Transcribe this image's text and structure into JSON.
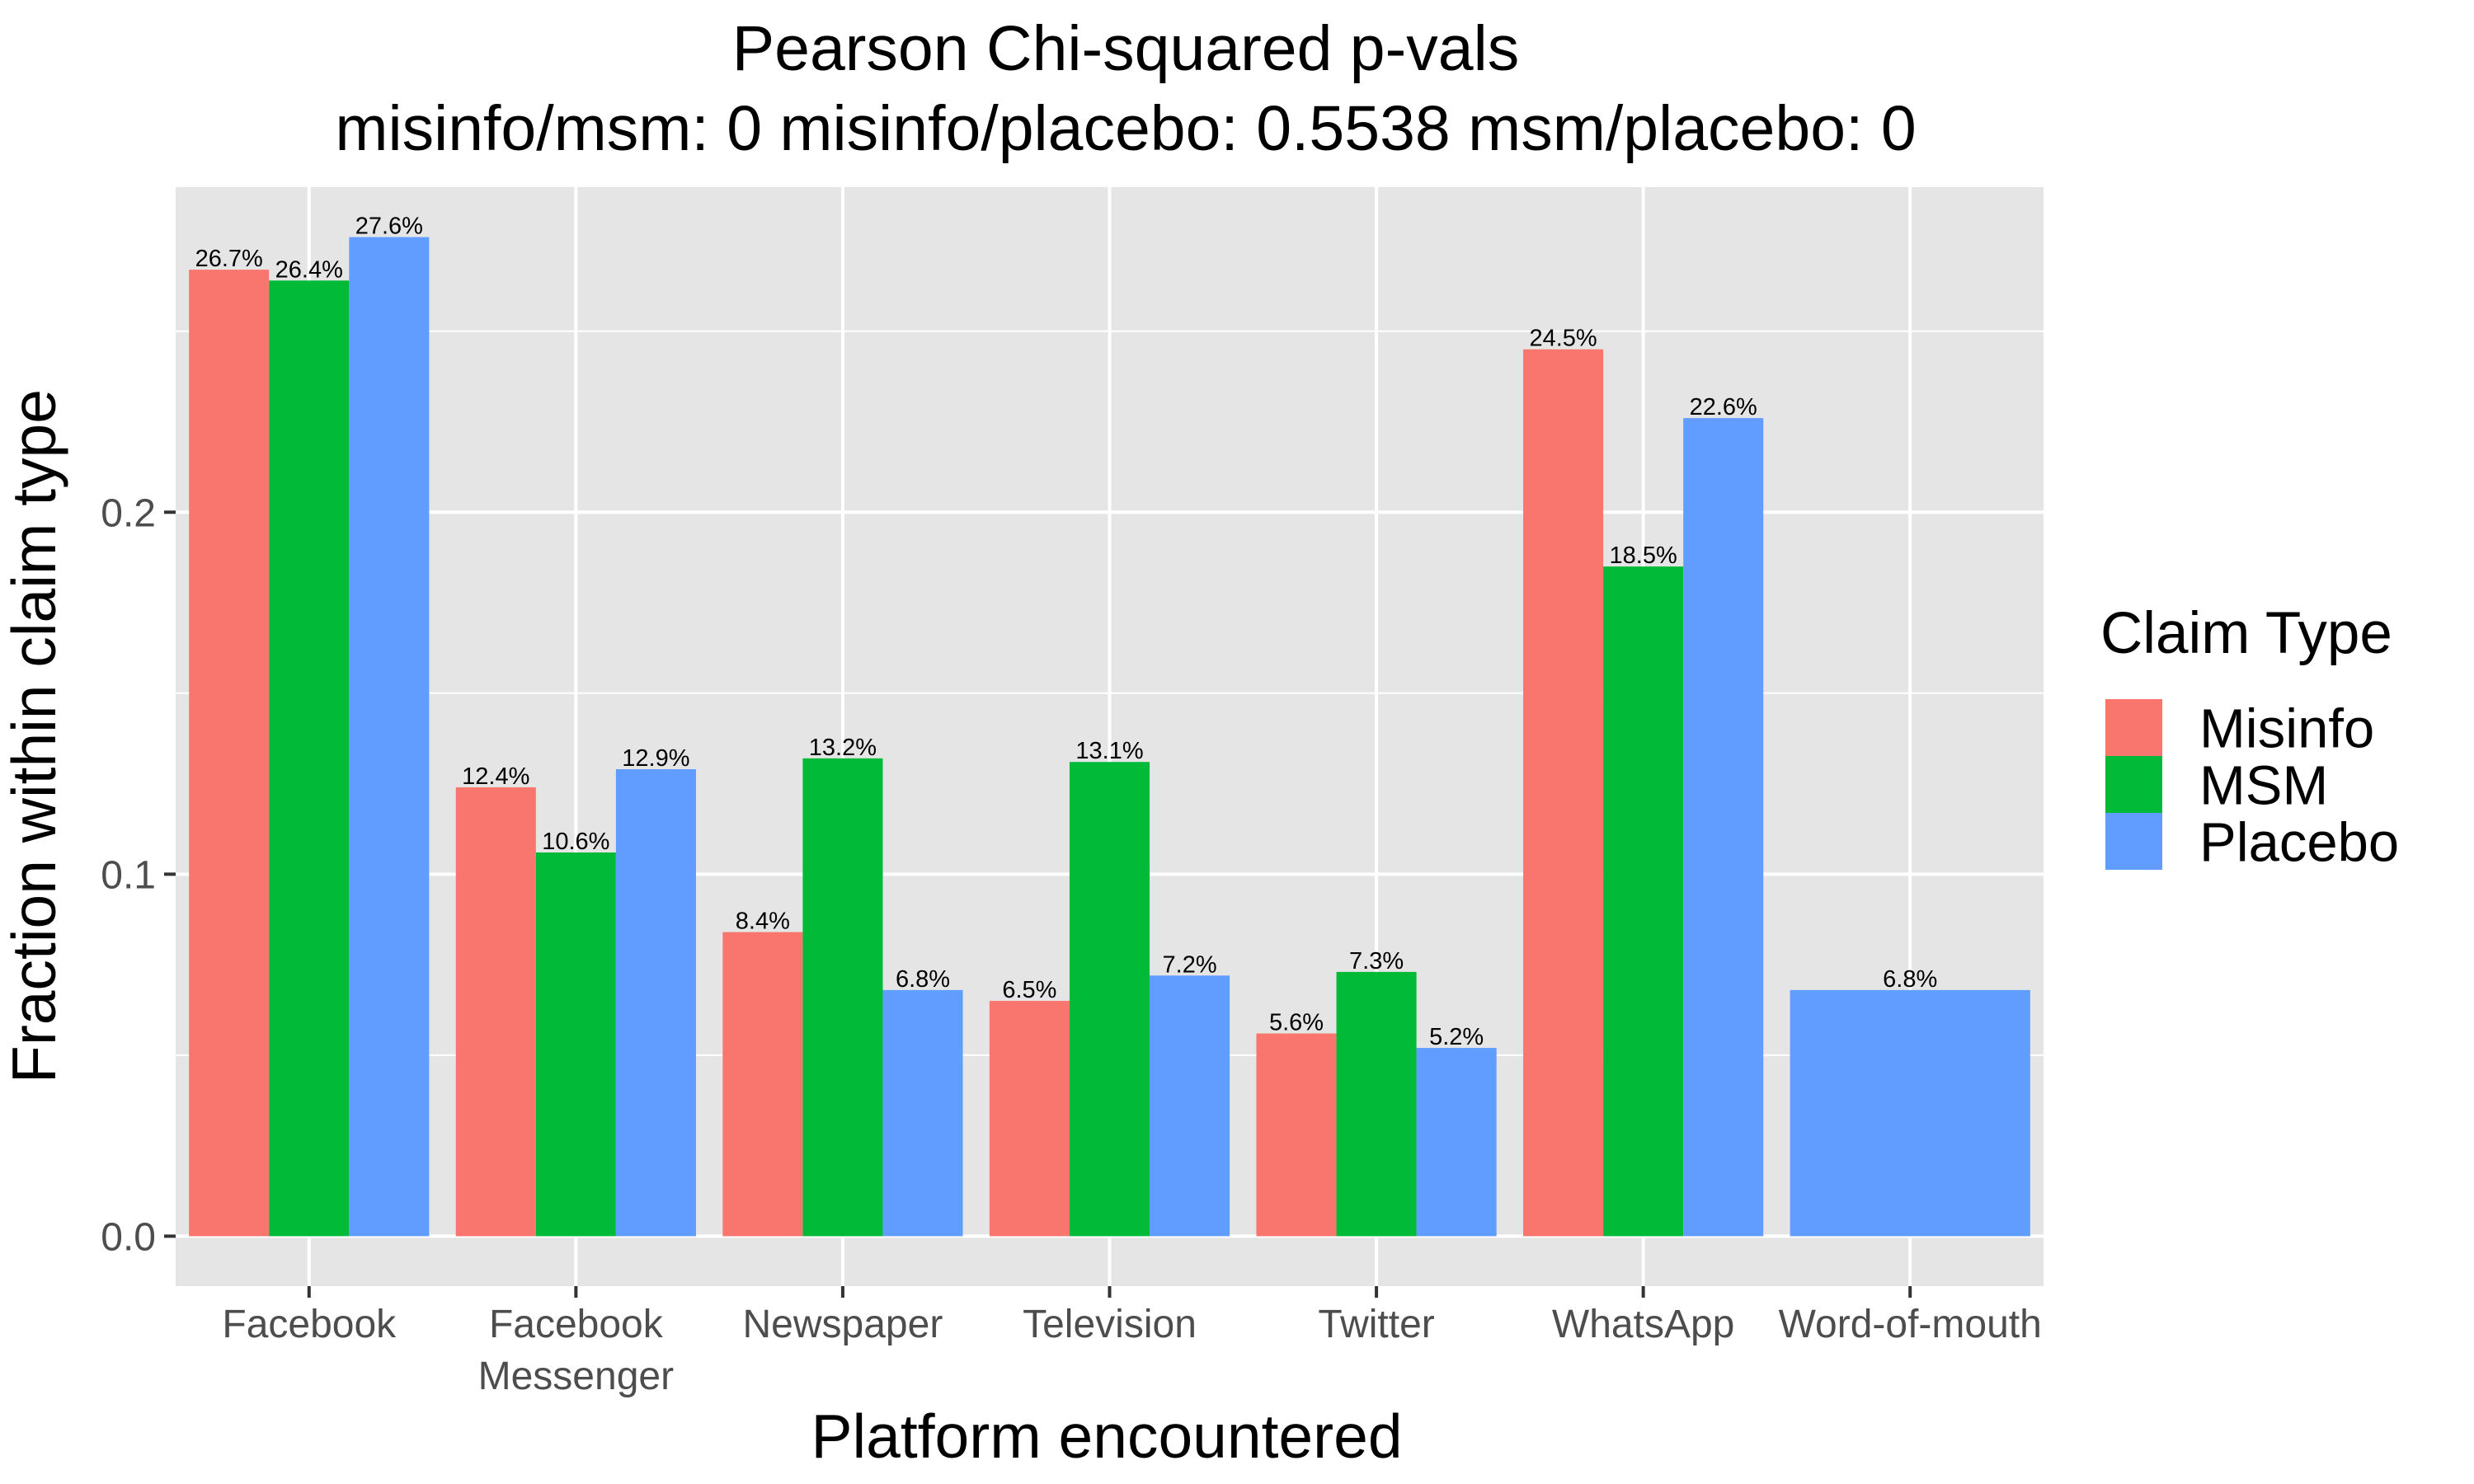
{
  "chart_data": {
    "type": "bar",
    "title": "Pearson Chi-squared p-vals",
    "subtitle": "misinfo/msm: 0 misinfo/placebo: 0.5538 msm/placebo: 0",
    "xlabel": "Platform encountered",
    "ylabel": "Fraction within claim type",
    "categories": [
      [
        "Facebook"
      ],
      [
        "Facebook",
        "Messenger"
      ],
      [
        "Newspaper"
      ],
      [
        "Television"
      ],
      [
        "Twitter"
      ],
      [
        "WhatsApp"
      ],
      [
        "Word-of-mouth"
      ]
    ],
    "series": [
      {
        "name": "Misinfo",
        "color": "#F8766D",
        "values": [
          0.267,
          0.124,
          0.084,
          0.065,
          0.056,
          0.245,
          null
        ],
        "labels": [
          "26.7%",
          "12.4%",
          "8.4%",
          "6.5%",
          "5.6%",
          "24.5%",
          null
        ]
      },
      {
        "name": "MSM",
        "color": "#00BA38",
        "values": [
          0.264,
          0.106,
          0.132,
          0.131,
          0.073,
          0.185,
          null
        ],
        "labels": [
          "26.4%",
          "10.6%",
          "13.2%",
          "13.1%",
          "7.3%",
          "18.5%",
          null
        ]
      },
      {
        "name": "Placebo",
        "color": "#619CFF",
        "values": [
          0.276,
          0.129,
          0.068,
          0.072,
          0.052,
          0.226,
          0.068
        ],
        "labels": [
          "27.6%",
          "12.9%",
          "6.8%",
          "7.2%",
          "5.2%",
          "22.6%",
          "6.8%"
        ]
      }
    ],
    "yticks": [
      0.0,
      0.1,
      0.2
    ],
    "ytick_labels": [
      "0.0",
      "0.1",
      "0.2"
    ],
    "ylim": [
      -0.0138,
      0.2898
    ],
    "grid": true,
    "panel_background": "#E5E5E5",
    "grid_color": "#FFFFFF",
    "legend": {
      "title": "Claim Type",
      "placement": "right"
    }
  }
}
